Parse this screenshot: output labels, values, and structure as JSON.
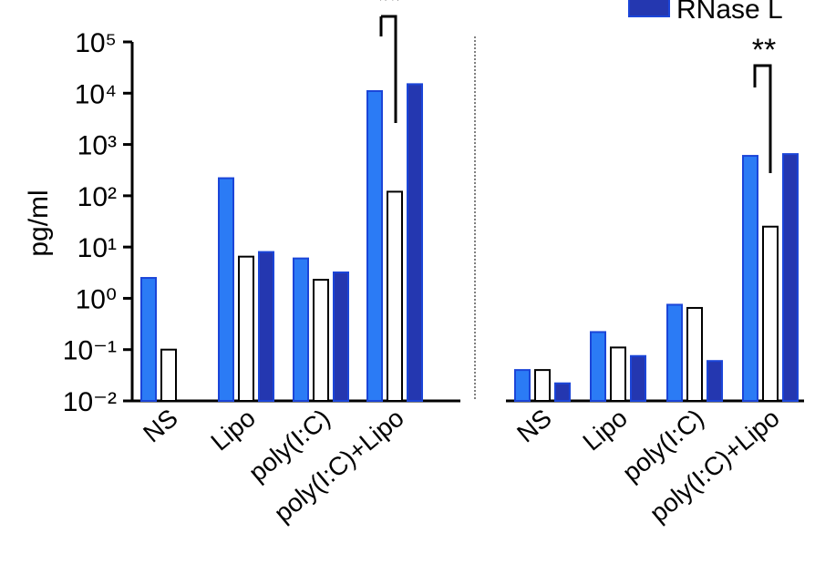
{
  "chart_data": [
    {
      "type": "bar",
      "log_scale": true,
      "ylabel": "pg/ml",
      "annotation": "**",
      "categories": [
        "NS",
        "Lipo",
        "poly(I:C)",
        "poly(I:C)+Lipo"
      ],
      "ylim": [
        0.01,
        100000
      ],
      "yticks": [
        {
          "value": 100000,
          "label": "10⁵"
        },
        {
          "value": 10000,
          "label": "10⁴"
        },
        {
          "value": 1000,
          "label": "10³"
        },
        {
          "value": 100,
          "label": "10²"
        },
        {
          "value": 10,
          "label": "10¹"
        },
        {
          "value": 1,
          "label": "10⁰"
        },
        {
          "value": 0.1,
          "label": "10⁻¹"
        },
        {
          "value": 0.01,
          "label": "10⁻²"
        }
      ],
      "series": [
        {
          "color": "#2b7bf5",
          "values": [
            2.5,
            220,
            6,
            11000
          ]
        },
        {
          "color": "#ffffff",
          "values": [
            0.1,
            6.5,
            2.3,
            120
          ]
        },
        {
          "color": "#2437b0",
          "values": [
            0.01,
            8,
            3.2,
            15000
          ]
        }
      ]
    },
    {
      "type": "bar",
      "annotation": "**",
      "categories": [
        "NS",
        "Lipo",
        "poly(I:C)",
        "poly(I:C)+Lipo"
      ],
      "series": [
        {
          "color": "#2b7bf5",
          "values": [
            0.04,
            0.22,
            0.75,
            600
          ]
        },
        {
          "color": "#ffffff",
          "values": [
            0.04,
            0.11,
            0.65,
            25
          ]
        },
        {
          "name": "RNase L",
          "color": "#2437b0",
          "values": [
            0.022,
            0.075,
            0.06,
            650
          ]
        }
      ]
    }
  ]
}
